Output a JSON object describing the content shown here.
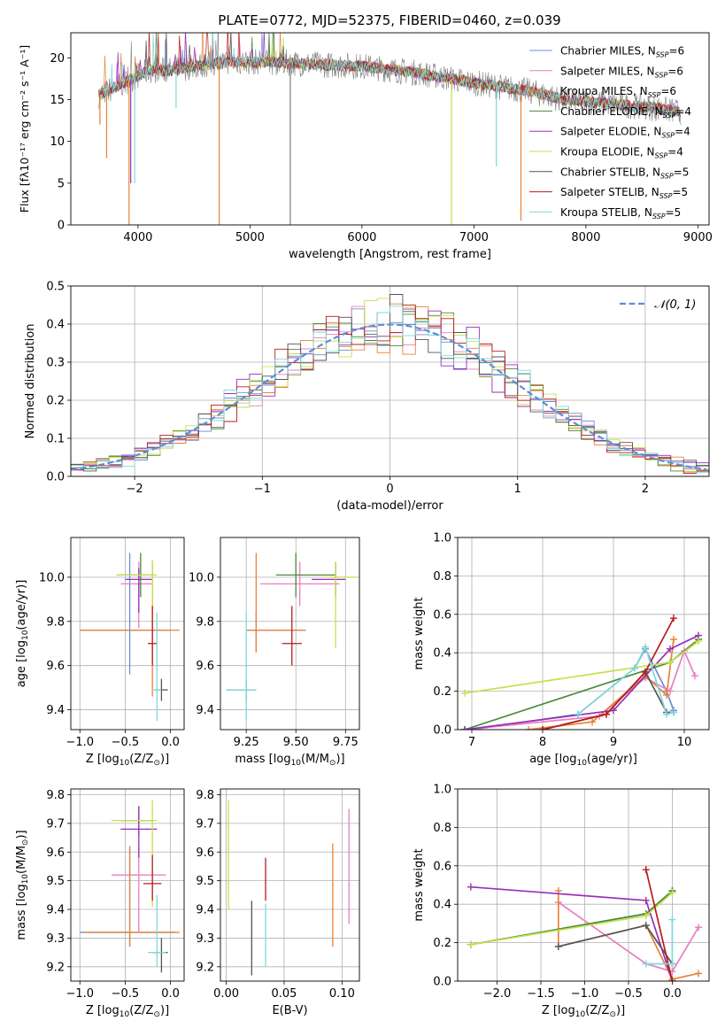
{
  "figure": {
    "title": "PLATE=0772, MJD=52375, FIBERID=0460, z=0.039"
  },
  "colors": {
    "Chabrier MILES": "#6b8ed6",
    "Salpeter MILES": "#e97fc0",
    "Kroupa MILES": "#e8823a",
    "Chabrier ELODIE": "#4a8a3c",
    "Salpeter ELODIE": "#9a2fb8",
    "Kroupa ELODIE": "#c6e04a",
    "Chabrier STELIB": "#555555",
    "Salpeter STELIB": "#b81c1c",
    "Kroupa STELIB": "#7fd8dc",
    "gaussian": "#5b8fd6",
    "data": "#7f7f7f"
  },
  "chart_data": [
    {
      "id": "spectrum",
      "type": "line",
      "xlabel": "wavelength [Angstrom, rest frame]",
      "ylabel": "Flux [f$_\\lambda$10$^{-17}$ erg cm$^{-2}$ s$^{-1}$ A$^{-1}$]",
      "ylabel_display": "Flux [fλ10⁻¹⁷ erg cm⁻² s⁻¹ A⁻¹]",
      "xlim": [
        3400,
        9100
      ],
      "ylim": [
        0,
        23
      ],
      "xticks": [
        4000,
        5000,
        6000,
        7000,
        8000,
        9000
      ],
      "yticks": [
        0,
        5,
        10,
        15,
        20
      ],
      "legend_position": "top-right",
      "legend": [
        "Chabrier MILES, N$_{SSP}$=6",
        "Salpeter MILES, N$_{SSP}$=6",
        "Kroupa MILES, N$_{SSP}$=6",
        "Chabrier ELODIE, N$_{SSP}$=4",
        "Salpeter ELODIE, N$_{SSP}$=4",
        "Kroupa ELODIE, N$_{SSP}$=4",
        "Chabrier STELIB, N$_{SSP}$=5",
        "Salpeter STELIB, N$_{SSP}$=5",
        "Kroupa STELIB, N$_{SSP}$=5"
      ],
      "legend_display": [
        [
          "Chabrier MILES, N",
          "SSP",
          "=6"
        ],
        [
          "Salpeter MILES, N",
          "SSP",
          "=6"
        ],
        [
          "Kroupa MILES, N",
          "SSP",
          "=6"
        ],
        [
          "Chabrier ELODIE, N",
          "SSP",
          "=4"
        ],
        [
          "Salpeter ELODIE, N",
          "SSP",
          "=4"
        ],
        [
          "Kroupa ELODIE, N",
          "SSP",
          "=4"
        ],
        [
          "Chabrier STELIB, N",
          "SSP",
          "=5"
        ],
        [
          "Salpeter STELIB, N",
          "SSP",
          "=5"
        ],
        [
          "Kroupa STELIB, N",
          "SSP",
          "=5"
        ]
      ],
      "continuum": [
        [
          3650,
          15.5
        ],
        [
          3800,
          16.5
        ],
        [
          3950,
          17.5
        ],
        [
          4100,
          18.5
        ],
        [
          4300,
          18.5
        ],
        [
          4500,
          19
        ],
        [
          4800,
          19.5
        ],
        [
          5200,
          19.5
        ],
        [
          5600,
          19.2
        ],
        [
          6000,
          19
        ],
        [
          6500,
          18.2
        ],
        [
          7000,
          17
        ],
        [
          7500,
          16
        ],
        [
          7800,
          15
        ],
        [
          8200,
          14.5
        ],
        [
          8600,
          14
        ],
        [
          8850,
          13.5
        ]
      ],
      "absorption_dips": [
        {
          "x": 3660,
          "y": 12
        },
        {
          "x": 3720,
          "y": 8
        },
        {
          "x": 3935,
          "y": 5
        },
        {
          "x": 3970,
          "y": 5
        },
        {
          "x": 4340,
          "y": 14
        },
        {
          "x": 4725,
          "y": 0
        },
        {
          "x": 5360,
          "y": 0
        },
        {
          "x": 6800,
          "y": 0
        },
        {
          "x": 7200,
          "y": 7
        },
        {
          "x": 7420,
          "y": 0.5
        },
        {
          "x": 3920,
          "y": 0
        }
      ]
    },
    {
      "id": "residual_hist",
      "type": "line",
      "xlabel": "(data-model)/error",
      "ylabel": "Normed distribution",
      "xlim": [
        -2.5,
        2.5
      ],
      "ylim": [
        0,
        0.5
      ],
      "xticks": [
        -2,
        -1,
        0,
        1,
        2
      ],
      "yticks": [
        0.0,
        0.1,
        0.2,
        0.3,
        0.4,
        0.5
      ],
      "grid": true,
      "legend_position": "top-right",
      "legend": [
        "$\\mathcal{N}(0,1)$"
      ],
      "legend_display": "𝒩(0, 1)",
      "bin_width": 0.1
    },
    {
      "id": "age_vs_Z",
      "type": "scatter",
      "xlabel": "Z [log$_{10}$(Z/Z$_\\odot$)]",
      "xlabel_display": [
        "Z [log",
        "10",
        "(Z/Z",
        "⊙",
        ")]"
      ],
      "ylabel": "age  [log$_{10}$(age/yr)]",
      "ylabel_display": [
        "age  [log",
        "10",
        "(age/yr)]"
      ],
      "xlim": [
        -1.1,
        0.15
      ],
      "ylim": [
        9.31,
        10.18
      ],
      "xticks": [
        -1.0,
        -0.5,
        0.0
      ],
      "yticks": [
        9.4,
        9.6,
        9.8,
        10.0
      ],
      "grid": true,
      "points": [
        {
          "model": "Chabrier MILES",
          "x": -0.45,
          "y": 9.76,
          "xerr": [
            0.55,
            0.45
          ],
          "yerr": [
            0.2,
            0.35
          ]
        },
        {
          "model": "Salpeter MILES",
          "x": -0.35,
          "y": 9.97,
          "xerr": [
            0.2,
            0.15
          ],
          "yerr": [
            0.2,
            0.1
          ]
        },
        {
          "model": "Kroupa MILES",
          "x": -0.2,
          "y": 9.76,
          "xerr": [
            0.8,
            0.3
          ],
          "yerr": [
            0.3,
            0.3
          ]
        },
        {
          "model": "Chabrier ELODIE",
          "x": -0.33,
          "y": 10.01,
          "xerr": [
            0.25,
            0.15
          ],
          "yerr": [
            0.1,
            0.1
          ]
        },
        {
          "model": "Salpeter ELODIE",
          "x": -0.35,
          "y": 9.99,
          "xerr": [
            0.15,
            0.15
          ],
          "yerr": [
            0.15,
            0.05
          ]
        },
        {
          "model": "Kroupa ELODIE",
          "x": -0.2,
          "y": 10.01,
          "xerr": [
            0.4,
            0.05
          ],
          "yerr": [
            0.2,
            0.07
          ]
        },
        {
          "model": "Chabrier STELIB",
          "x": -0.1,
          "y": 9.49,
          "xerr": [
            0.07,
            0.07
          ],
          "yerr": [
            0.05,
            0.05
          ]
        },
        {
          "model": "Salpeter STELIB",
          "x": -0.2,
          "y": 9.7,
          "xerr": [
            0.05,
            0.05
          ],
          "yerr": [
            0.1,
            0.17
          ]
        },
        {
          "model": "Kroupa STELIB",
          "x": -0.15,
          "y": 9.49,
          "xerr": [
            0.05,
            0.05
          ],
          "yerr": [
            0.14,
            0.35
          ]
        }
      ]
    },
    {
      "id": "age_vs_mass",
      "type": "scatter",
      "xlabel": "mass [log$_{10}$(M/M$_\\odot$)]",
      "xlabel_display": [
        "mass [log",
        "10",
        "(M/M",
        "⊙",
        ")]"
      ],
      "xlim": [
        9.12,
        9.82
      ],
      "ylim": [
        9.31,
        10.18
      ],
      "xticks": [
        9.25,
        9.5,
        9.75
      ],
      "yticks": [
        9.4,
        9.6,
        9.8,
        10.0
      ],
      "grid": true,
      "points": [
        {
          "model": "Chabrier MILES",
          "x": 9.3,
          "y": 9.76,
          "xerr": [
            0.05,
            0.25
          ],
          "yerr": [
            0.1,
            0.08
          ]
        },
        {
          "model": "Salpeter MILES",
          "x": 9.52,
          "y": 9.97,
          "xerr": [
            0.2,
            0.2
          ],
          "yerr": [
            0.1,
            0.1
          ]
        },
        {
          "model": "Kroupa MILES",
          "x": 9.3,
          "y": 9.76,
          "xerr": [
            0.05,
            0.25
          ],
          "yerr": [
            0.1,
            0.35
          ]
        },
        {
          "model": "Chabrier ELODIE",
          "x": 9.5,
          "y": 10.01,
          "xerr": [
            0.1,
            0.2
          ],
          "yerr": [
            0.1,
            0.1
          ]
        },
        {
          "model": "Salpeter ELODIE",
          "x": 9.7,
          "y": 9.99,
          "xerr": [
            0.12,
            0.05
          ],
          "yerr": [
            0.08,
            0.08
          ]
        },
        {
          "model": "Kroupa ELODIE",
          "x": 9.7,
          "y": 10.0,
          "xerr": [
            0.05,
            0.1
          ],
          "yerr": [
            0.32,
            0.07
          ]
        },
        {
          "model": "Chabrier STELIB",
          "x": 9.25,
          "y": 9.49,
          "xerr": [
            0.1,
            0.05
          ],
          "yerr": [
            0.05,
            0.05
          ]
        },
        {
          "model": "Salpeter STELIB",
          "x": 9.48,
          "y": 9.7,
          "xerr": [
            0.05,
            0.05
          ],
          "yerr": [
            0.1,
            0.17
          ]
        },
        {
          "model": "Kroupa STELIB",
          "x": 9.25,
          "y": 9.49,
          "xerr": [
            0.1,
            0.05
          ],
          "yerr": [
            0.14,
            0.35
          ]
        }
      ]
    },
    {
      "id": "mass_weight_vs_age",
      "type": "line",
      "xlabel": "age  [log$_{10}$(age/yr)]",
      "xlabel_display": [
        "age  [log",
        "10",
        "(age/yr)]"
      ],
      "ylabel": "mass weight",
      "xlim": [
        6.8,
        10.35
      ],
      "ylim": [
        0,
        1.0
      ],
      "xticks": [
        7,
        8,
        9,
        10
      ],
      "yticks": [
        0.0,
        0.2,
        0.4,
        0.6,
        0.8,
        1.0
      ],
      "grid": true,
      "series": [
        {
          "model": "Chabrier MILES",
          "x": [
            7.0,
            8.5,
            9.3,
            9.45,
            9.75,
            9.85
          ],
          "y": [
            0.0,
            0.08,
            0.32,
            0.42,
            0.2,
            0.1
          ]
        },
        {
          "model": "Salpeter MILES",
          "x": [
            6.9,
            8.8,
            9.45,
            9.8,
            10.0,
            10.15
          ],
          "y": [
            0.0,
            0.07,
            0.27,
            0.2,
            0.41,
            0.28
          ]
        },
        {
          "model": "Kroupa MILES",
          "x": [
            7.8,
            8.7,
            9.45,
            9.75,
            9.85
          ],
          "y": [
            0.0,
            0.04,
            0.28,
            0.18,
            0.47
          ]
        },
        {
          "model": "Chabrier ELODIE",
          "x": [
            6.9,
            9.8,
            10.2
          ],
          "y": [
            0.0,
            0.35,
            0.47
          ]
        },
        {
          "model": "Salpeter ELODIE",
          "x": [
            6.9,
            9.0,
            9.8,
            10.2
          ],
          "y": [
            0.0,
            0.1,
            0.42,
            0.49
          ]
        },
        {
          "model": "Kroupa ELODIE",
          "x": [
            6.9,
            9.8,
            10.2
          ],
          "y": [
            0.19,
            0.35,
            0.46
          ]
        },
        {
          "model": "Chabrier STELIB",
          "x": [
            8.0,
            8.9,
            9.45,
            9.75,
            9.85
          ],
          "y": [
            0.0,
            0.08,
            0.3,
            0.09,
            0.09
          ]
        },
        {
          "model": "Salpeter STELIB",
          "x": [
            8.0,
            8.9,
            9.45,
            9.85
          ],
          "y": [
            0.0,
            0.08,
            0.3,
            0.58
          ]
        },
        {
          "model": "Kroupa STELIB",
          "x": [
            8.5,
            9.3,
            9.45,
            9.75,
            9.85
          ],
          "y": [
            0.08,
            0.32,
            0.43,
            0.08,
            0.09
          ]
        }
      ]
    },
    {
      "id": "mass_vs_Z",
      "type": "scatter",
      "xlabel": "Z [log$_{10}$(Z/Z$_\\odot$)]",
      "xlabel_display": [
        "Z [log",
        "10",
        "(Z/Z",
        "⊙",
        ")]"
      ],
      "ylabel": "mass [log$_{10}$(M/M$_\\odot$)]",
      "ylabel_display": [
        "mass [log",
        "10",
        "(M/M",
        "⊙",
        ")]"
      ],
      "xlim": [
        -1.1,
        0.15
      ],
      "ylim": [
        9.15,
        9.82
      ],
      "xticks": [
        -1.0,
        -0.5,
        0.0
      ],
      "yticks": [
        9.2,
        9.3,
        9.4,
        9.5,
        9.6,
        9.7,
        9.8
      ],
      "grid": true,
      "points": [
        {
          "model": "Chabrier MILES",
          "x": -0.45,
          "y": 9.32,
          "xerr": [
            0.55,
            0.5
          ],
          "yerr": [
            0.05,
            0.3
          ]
        },
        {
          "model": "Salpeter MILES",
          "x": -0.35,
          "y": 9.52,
          "xerr": [
            0.3,
            0.3
          ],
          "yerr": [
            0.2,
            0.1
          ]
        },
        {
          "model": "Kroupa MILES",
          "x": -0.45,
          "y": 9.32,
          "xerr": [
            0.5,
            0.55
          ],
          "yerr": [
            0.05,
            0.3
          ]
        },
        {
          "model": "Chabrier ELODIE",
          "x": -0.35,
          "y": 9.71,
          "xerr": [
            0.2,
            0.15
          ],
          "yerr": [
            0.05,
            0.05
          ]
        },
        {
          "model": "Salpeter ELODIE",
          "x": -0.35,
          "y": 9.68,
          "xerr": [
            0.2,
            0.2
          ],
          "yerr": [
            0.1,
            0.08
          ]
        },
        {
          "model": "Kroupa ELODIE",
          "x": -0.2,
          "y": 9.71,
          "xerr": [
            0.45,
            0.05
          ],
          "yerr": [
            0.3,
            0.07
          ]
        },
        {
          "model": "Chabrier STELIB",
          "x": -0.1,
          "y": 9.25,
          "xerr": [
            0.1,
            0.07
          ],
          "yerr": [
            0.07,
            0.05
          ]
        },
        {
          "model": "Salpeter STELIB",
          "x": -0.2,
          "y": 9.49,
          "xerr": [
            0.1,
            0.1
          ],
          "yerr": [
            0.06,
            0.1
          ]
        },
        {
          "model": "Kroupa STELIB",
          "x": -0.15,
          "y": 9.25,
          "xerr": [
            0.1,
            0.1
          ],
          "yerr": [
            0.05,
            0.2
          ]
        }
      ]
    },
    {
      "id": "mass_vs_ebv",
      "type": "scatter",
      "xlabel": "E(B-V)",
      "xlim": [
        -0.005,
        0.115
      ],
      "ylim": [
        9.15,
        9.82
      ],
      "xticks": [
        0.0,
        0.05,
        0.1
      ],
      "xtick_labels": [
        "0.00",
        "0.05",
        "0.10"
      ],
      "yticks": [
        9.2,
        9.3,
        9.4,
        9.5,
        9.6,
        9.7,
        9.8
      ],
      "grid": true,
      "points": [
        {
          "model": "Kroupa ELODIE",
          "x": 0.002,
          "y": 9.55,
          "yerr": [
            0.15,
            0.23
          ]
        },
        {
          "model": "Chabrier STELIB",
          "x": 0.022,
          "y": 9.3,
          "yerr": [
            0.13,
            0.13
          ]
        },
        {
          "model": "Kroupa STELIB",
          "x": 0.034,
          "y": 9.3,
          "yerr": [
            0.1,
            0.12
          ]
        },
        {
          "model": "Salpeter STELIB",
          "x": 0.034,
          "y": 9.5,
          "yerr": [
            0.07,
            0.08
          ]
        },
        {
          "model": "Kroupa MILES",
          "x": 0.092,
          "y": 9.45,
          "yerr": [
            0.18,
            0.18
          ]
        },
        {
          "model": "Salpeter MILES",
          "x": 0.106,
          "y": 9.55,
          "yerr": [
            0.2,
            0.2
          ]
        }
      ]
    },
    {
      "id": "mass_weight_vs_Z",
      "type": "line",
      "xlabel": "Z [log$_{10}$(Z/Z$_\\odot$)]",
      "xlabel_display": [
        "Z [log",
        "10",
        "(Z/Z",
        "⊙",
        ")]"
      ],
      "ylabel": "mass weight",
      "xlim": [
        -2.45,
        0.42
      ],
      "ylim": [
        0,
        1.0
      ],
      "xticks": [
        -2.0,
        -1.5,
        -1.0,
        -0.5,
        0.0
      ],
      "xtick_labels": [
        "−2.0",
        "−1.5",
        "−1.0",
        "−0.5",
        "0.0"
      ],
      "yticks": [
        0.0,
        0.2,
        0.4,
        0.6,
        0.8,
        1.0
      ],
      "grid": true,
      "series": [
        {
          "model": "Chabrier MILES",
          "x": [
            -2.3,
            -0.3,
            0.0
          ],
          "y": [
            0.19,
            0.35,
            0.47
          ]
        },
        {
          "model": "Salpeter MILES",
          "x": [
            -1.3,
            -0.3,
            0.0,
            0.3
          ],
          "y": [
            0.41,
            0.09,
            0.05,
            0.28
          ]
        },
        {
          "model": "Kroupa MILES",
          "x": [
            -1.3,
            -1.3,
            -0.3,
            0.0,
            0.3
          ],
          "y": [
            0.47,
            0.18,
            0.29,
            0.01,
            0.04
          ]
        },
        {
          "model": "Chabrier ELODIE",
          "x": [
            -2.3,
            -0.3,
            0.0
          ],
          "y": [
            0.19,
            0.35,
            0.47
          ]
        },
        {
          "model": "Salpeter ELODIE",
          "x": [
            -2.3,
            -0.3,
            0.0
          ],
          "y": [
            0.49,
            0.42,
            0.0
          ]
        },
        {
          "model": "Kroupa ELODIE",
          "x": [
            -2.3,
            -0.3,
            0.0
          ],
          "y": [
            0.19,
            0.34,
            0.46
          ]
        },
        {
          "model": "Chabrier STELIB",
          "x": [
            -1.3,
            -0.3,
            0.0
          ],
          "y": [
            0.18,
            0.29,
            0.09
          ]
        },
        {
          "model": "Salpeter STELIB",
          "x": [
            -0.3,
            0.0
          ],
          "y": [
            0.58,
            0.0
          ]
        },
        {
          "model": "Kroupa STELIB",
          "x": [
            -0.3,
            0.0,
            0.0
          ],
          "y": [
            0.09,
            0.09,
            0.32
          ]
        }
      ]
    }
  ]
}
